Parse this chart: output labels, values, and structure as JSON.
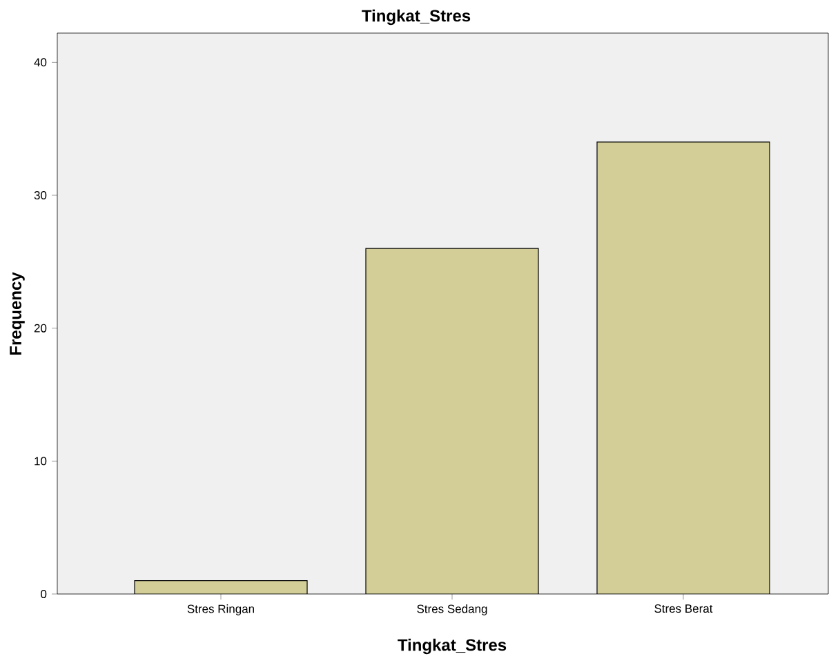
{
  "chart_data": {
    "type": "bar",
    "title": "Tingkat_Stres",
    "xlabel": "Tingkat_Stres",
    "ylabel": "Frequency",
    "categories": [
      "Stres Ringan",
      "Stres Sedang",
      "Stres Berat"
    ],
    "values": [
      1,
      26,
      34
    ],
    "color": "#d3ce97",
    "ylim": [
      0,
      42.2
    ],
    "yticks": [
      0,
      10,
      20,
      30,
      40
    ],
    "grid": false
  }
}
